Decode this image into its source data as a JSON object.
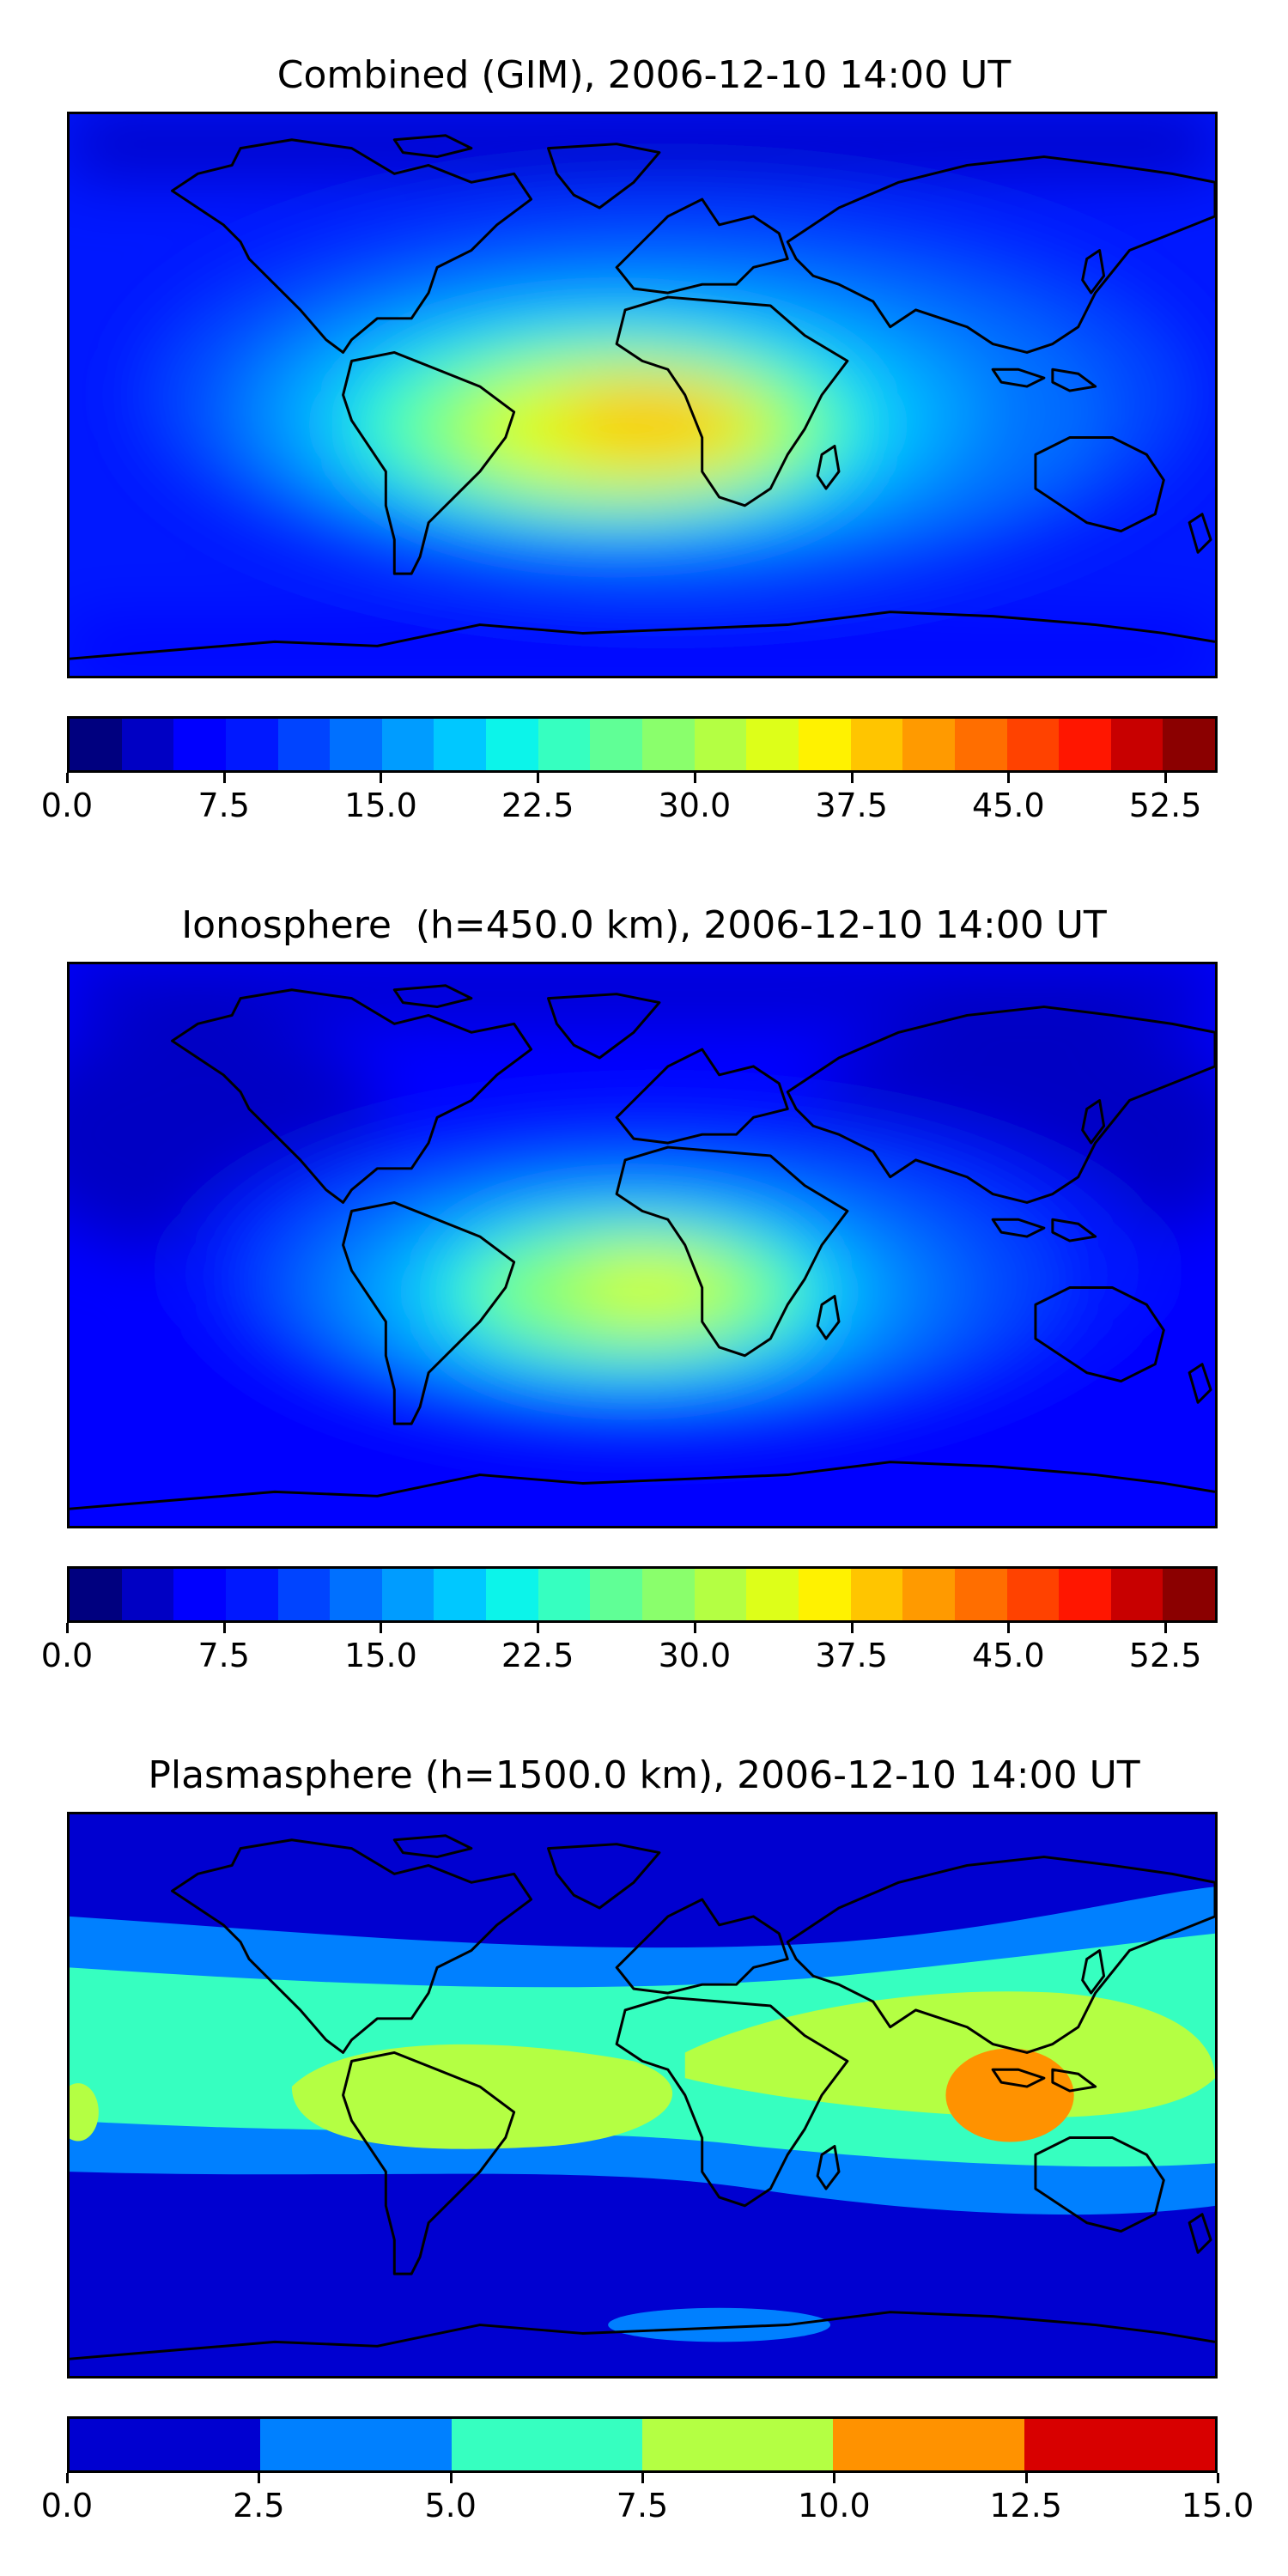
{
  "panels": [
    {
      "title": "Combined (GIM), 2006-12-10 14:00 UT",
      "field": "combined",
      "colorbar": {
        "min": 0.0,
        "max": 55.0,
        "step": 2.5,
        "tick_labels": [
          "0.0",
          "7.5",
          "15.0",
          "22.5",
          "30.0",
          "37.5",
          "45.0",
          "52.5"
        ],
        "tick_values": [
          0.0,
          7.5,
          15.0,
          22.5,
          30.0,
          37.5,
          45.0,
          52.5
        ],
        "colors": [
          "#00007f",
          "#0000c4",
          "#0000ff",
          "#0018ff",
          "#0044ff",
          "#0070ff",
          "#009cff",
          "#00c8ff",
          "#0cf4ea",
          "#36ffc0",
          "#60ff96",
          "#8aff6c",
          "#b4ff43",
          "#ddff19",
          "#fff200",
          "#ffc500",
          "#ff9a00",
          "#ff6e00",
          "#ff4200",
          "#ff1600",
          "#c80000",
          "#8b0000"
        ]
      }
    },
    {
      "title": "Ionosphere  (h=450.0 km), 2006-12-10 14:00 UT",
      "field": "ionosphere",
      "colorbar": {
        "min": 0.0,
        "max": 55.0,
        "step": 2.5,
        "tick_labels": [
          "0.0",
          "7.5",
          "15.0",
          "22.5",
          "30.0",
          "37.5",
          "45.0",
          "52.5"
        ],
        "tick_values": [
          0.0,
          7.5,
          15.0,
          22.5,
          30.0,
          37.5,
          45.0,
          52.5
        ],
        "colors": [
          "#00007f",
          "#0000c4",
          "#0000ff",
          "#0018ff",
          "#0044ff",
          "#0070ff",
          "#009cff",
          "#00c8ff",
          "#0cf4ea",
          "#36ffc0",
          "#60ff96",
          "#8aff6c",
          "#b4ff43",
          "#ddff19",
          "#fff200",
          "#ffc500",
          "#ff9a00",
          "#ff6e00",
          "#ff4200",
          "#ff1600",
          "#c80000",
          "#8b0000"
        ]
      }
    },
    {
      "title": "Plasmasphere (h=1500.0 km), 2006-12-10 14:00 UT",
      "field": "plasmasphere",
      "colorbar": {
        "min": 0.0,
        "max": 15.0,
        "step": 2.5,
        "tick_labels": [
          "0.0",
          "2.5",
          "5.0",
          "7.5",
          "10.0",
          "12.5",
          "15.0"
        ],
        "tick_values": [
          0.0,
          2.5,
          5.0,
          7.5,
          10.0,
          12.5,
          15.0
        ],
        "colors": [
          "#0000d0",
          "#0080ff",
          "#36ffc0",
          "#b4ff43",
          "#ff9200",
          "#d80000"
        ]
      }
    }
  ]
}
